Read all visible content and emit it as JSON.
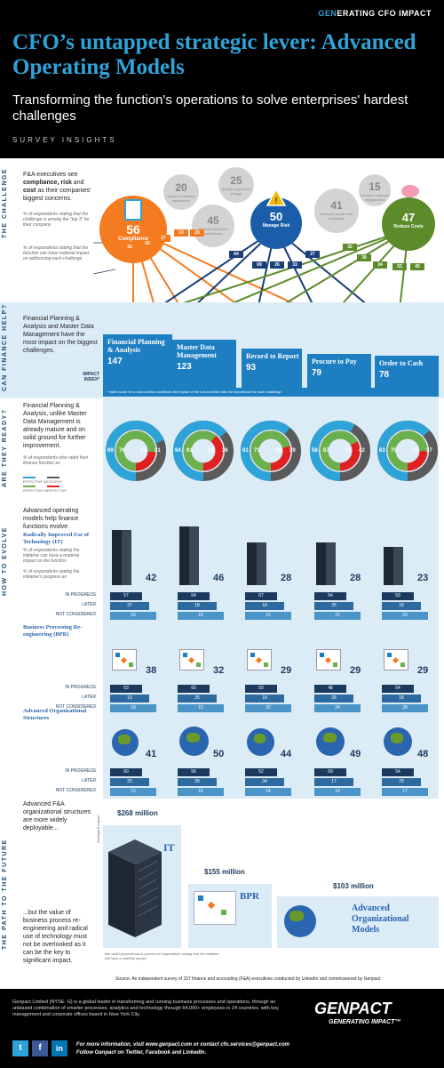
{
  "header": {
    "brand_prefix": "GEN",
    "brand_rest": "ERATING CFO IMPACT",
    "title": "CFO’s untapped strategic lever: Advanced Operating Models",
    "subtitle": "Transforming the function's operations to solve enterprises' hardest challenges",
    "survey": "SURVEY INSIGHTS"
  },
  "challenge": {
    "side_label": "THE CHALLENGE",
    "intro_a": "F&A executives see ",
    "intro_b": "compliance, risk",
    "intro_c": " and ",
    "intro_d": "cost",
    "intro_e": " as their companies' biggest concerns.",
    "note1": "% of respondents stating that the challenge is among the \"top 3\" for their company",
    "note2": "% of respondents stating that the function can have material impact on addressing each challenge",
    "main": [
      {
        "value": "56",
        "label": "Compliance",
        "color": "#f47b20"
      },
      {
        "value": "50",
        "label": "Manage Risk",
        "color": "#1a5da8"
      },
      {
        "value": "47",
        "label": "Reduce Costs",
        "color": "#5d8a2b"
      }
    ],
    "minor": [
      {
        "value": "20",
        "label": "Achieve customer satisfaction"
      },
      {
        "value": "25",
        "label": "Quickly respond to change"
      },
      {
        "value": "45",
        "label": "Increase customer satisfaction"
      },
      {
        "value": "41",
        "label": "Increase growth and scalability"
      },
      {
        "value": "15",
        "label": "Increase employee engagement"
      }
    ],
    "badges_orange": [
      "32",
      "42",
      "27",
      "33",
      "23"
    ],
    "badges_blue": [
      "64",
      "69",
      "26",
      "33",
      "27"
    ],
    "badges_green": [
      "32",
      "39",
      "34",
      "53",
      "45"
    ]
  },
  "finance_help": {
    "side_label": "CAN FINANCE HELP?",
    "intro": "Financial Planning & Analysis and Master Data Management have the most impact on the biggest challenges.",
    "impact_label": "IMPACT INDEX*",
    "footnote": "* Index score for a sub-function combines the impact of the sub-function with the importance for each challenge",
    "functions": [
      {
        "name": "Financial Planning & Analysis",
        "value": "147"
      },
      {
        "name": "Master Data Management",
        "value": "123"
      },
      {
        "name": "Record to Report",
        "value": "93"
      },
      {
        "name": "Procure to Pay",
        "value": "79"
      },
      {
        "name": "Order to Cash",
        "value": "78"
      }
    ]
  },
  "ready": {
    "side_label": "ARE THEY READY?",
    "intro": "Financial Planning & Analysis, unlike Master Data Management is already mature and on solid ground for further improvement.",
    "note": "% of respondents who rated their finance function as",
    "legend": [
      "EFFECTIVE",
      "DEFICIENT",
      "EFFECTIVE",
      "INEFFECTIVE"
    ],
    "donuts": [
      {
        "outer_a": "69",
        "inner_a": "76",
        "inner_b": "24",
        "outer_b": "31"
      },
      {
        "outer_a": "64",
        "inner_a": "61",
        "inner_b": "39",
        "outer_b": "36"
      },
      {
        "outer_a": "61",
        "inner_a": "71",
        "inner_b": "29",
        "outer_b": "39"
      },
      {
        "outer_a": "58",
        "inner_a": "67",
        "inner_b": "33",
        "outer_b": "42"
      },
      {
        "outer_a": "63",
        "inner_a": "75",
        "inner_b": "25",
        "outer_b": "37"
      }
    ]
  },
  "evolve": {
    "side_label": "HOW TO EVOLVE",
    "intro": "Advanced operating models help finance functions evolve.",
    "rows_labels": [
      "IN PROGRESS",
      "LATER",
      "NOT CONSIDERED"
    ],
    "it": {
      "title": "Radically Improved Use of Technology (IT)",
      "note1": "% of respondents stating the initiative can have a material impact on the function",
      "note2": "% of respondents stating the initiative's progress as",
      "values": [
        {
          "impact": "42",
          "prog": "57",
          "later": "27",
          "not": "16"
        },
        {
          "impact": "46",
          "prog": "64",
          "later": "18",
          "not": "18"
        },
        {
          "impact": "28",
          "prog": "67",
          "later": "18",
          "not": "15"
        },
        {
          "impact": "28",
          "prog": "54",
          "later": "25",
          "not": "21"
        },
        {
          "impact": "23",
          "prog": "59",
          "later": "18",
          "not": "23"
        }
      ]
    },
    "bpr": {
      "title": "Business Processing Re-engineering (BPR)",
      "values": [
        {
          "impact": "38",
          "prog": "63",
          "later": "19",
          "not": "18"
        },
        {
          "impact": "32",
          "prog": "60",
          "later": "25",
          "not": "15"
        },
        {
          "impact": "29",
          "prog": "50",
          "later": "18",
          "not": "32"
        },
        {
          "impact": "29",
          "prog": "48",
          "later": "28",
          "not": "24"
        },
        {
          "impact": "29",
          "prog": "54",
          "later": "18",
          "not": "28"
        }
      ]
    },
    "org": {
      "title": "Advanced Organizational Structures",
      "values": [
        {
          "impact": "41",
          "prog": "60",
          "later": "25",
          "not": "15"
        },
        {
          "impact": "50",
          "prog": "56",
          "later": "28",
          "not": "16"
        },
        {
          "impact": "44",
          "prog": "52",
          "later": "34",
          "not": "14"
        },
        {
          "impact": "49",
          "prog": "69",
          "later": "17",
          "not": "14"
        },
        {
          "impact": "48",
          "prog": "54",
          "later": "29",
          "not": "17"
        }
      ]
    }
  },
  "future": {
    "side_label": "THE PATH TO THE FUTURE",
    "intro": "Advanced F&A organizational structures are more widely deployable...",
    "closing": "...but the value of business process re-engineering and radical use of technology must not be overlooked as it can be the key to significant impact.",
    "axis_label": "Average $ Impact",
    "bars": [
      {
        "amount": "$268 million",
        "name": "IT"
      },
      {
        "amount": "$155 million",
        "name": "BPR"
      },
      {
        "amount": "$103 million",
        "name": "Advanced Organizational Models"
      }
    ],
    "bar_note": "Bar width proportional to percent of respondents stating that the initiative will have a material impact",
    "source": "Source: An independent survey of 157 finance and accounting (F&A) executives conducted by LinkedIn and commissioned by Genpact"
  },
  "footer": {
    "about": "Genpact Limited (NYSE: G) is a global leader in transforming and running business processes and operations, through an unbiased combination of smarter processes, analytics and technology through 64,000+ employees in 24 countries, with key management and corporate offices based in New York City.",
    "logo": "GENPACT",
    "tagline": "GENERATING IMPACT™",
    "contact1": "For more information, visit www.genpact.com or contact cfo.services@genpact.com",
    "contact2": "Follow Genpact on Twitter, Facebook and LinkedIn."
  }
}
